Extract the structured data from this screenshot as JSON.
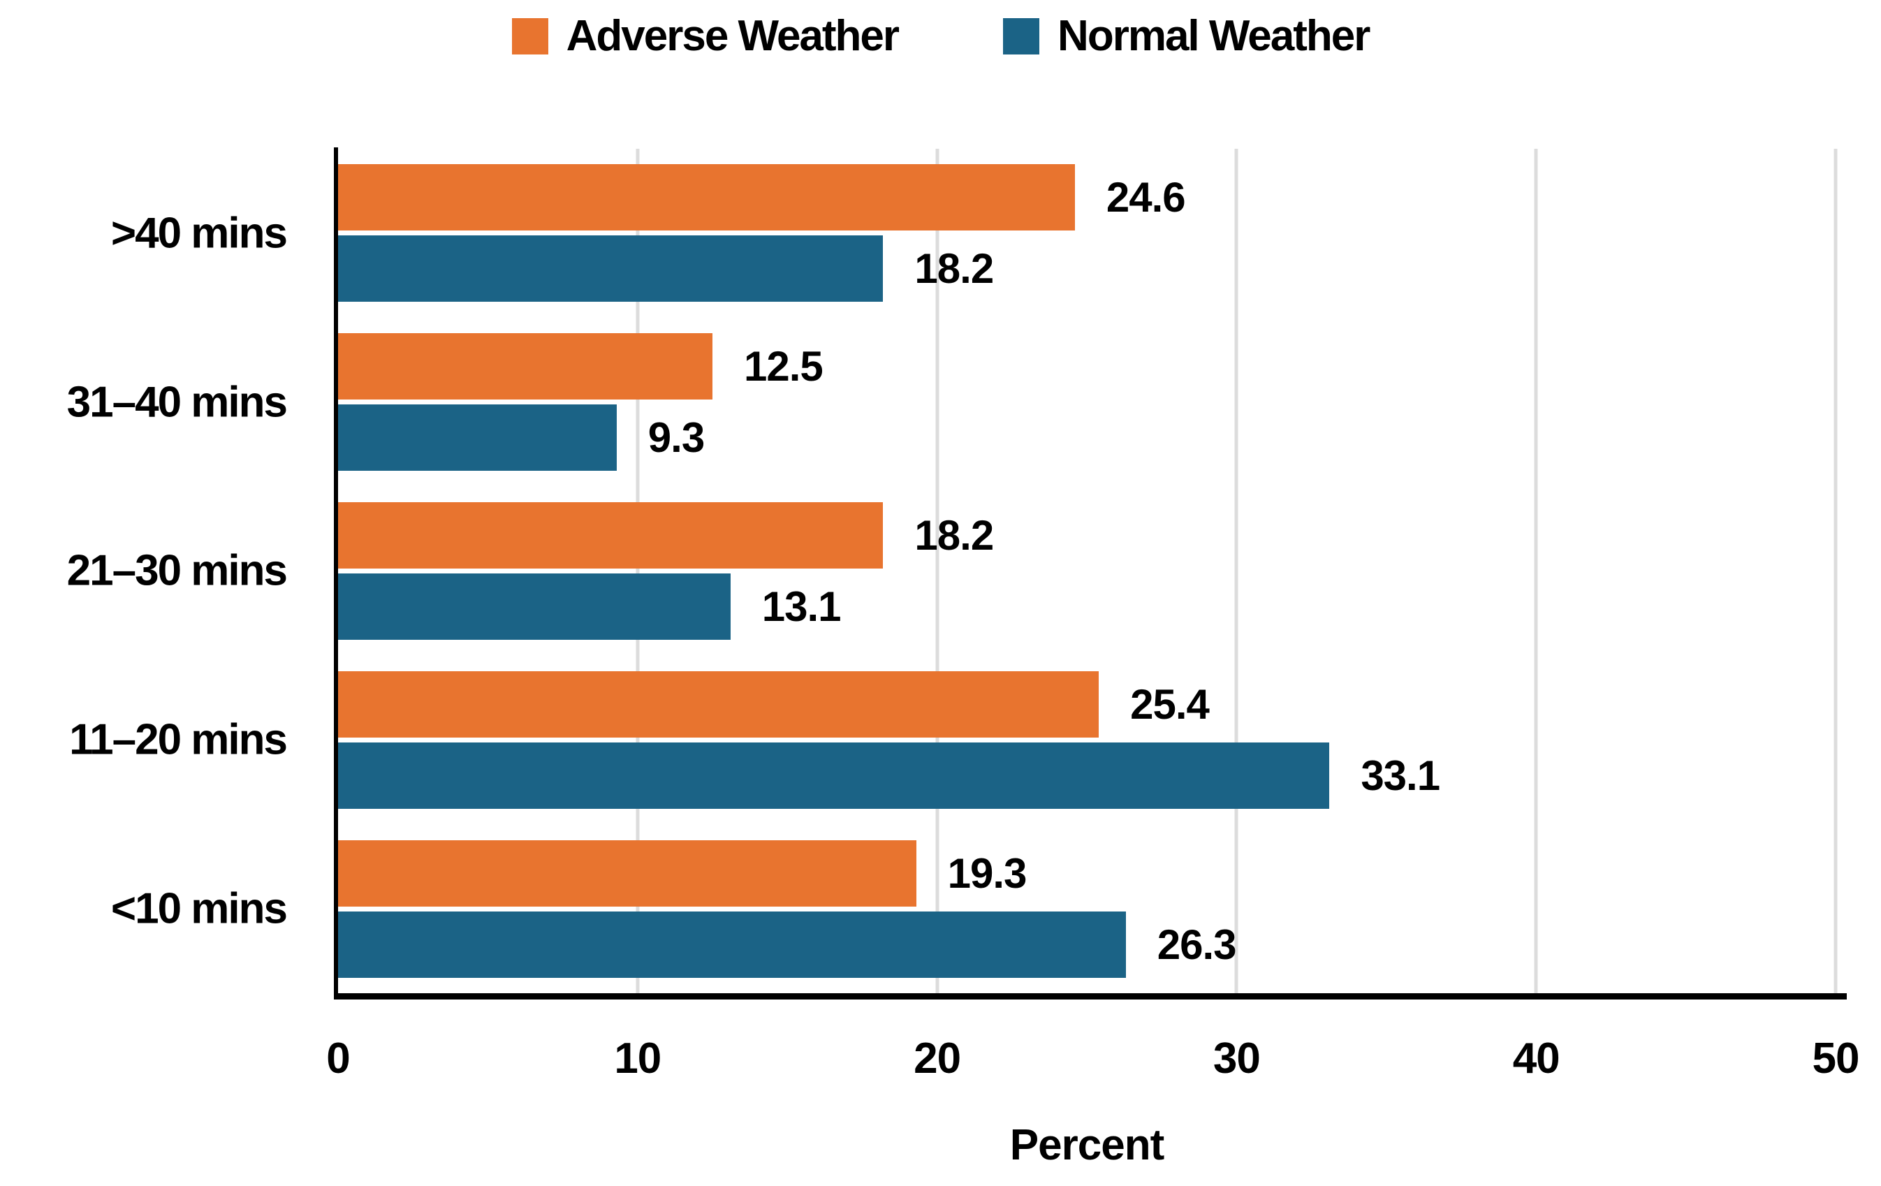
{
  "legend": {
    "items": [
      {
        "label": "Adverse Weather",
        "color": "#E8742F"
      },
      {
        "label": "Normal Weather",
        "color": "#1B6386"
      }
    ],
    "position": "top-center"
  },
  "chart_data": {
    "type": "bar",
    "orientation": "horizontal",
    "title": "",
    "xlabel": "Percent",
    "ylabel": "",
    "xlim": [
      0,
      50
    ],
    "xticks": [
      0,
      10,
      20,
      30,
      40,
      50
    ],
    "grid": "vertical",
    "legend_position": "top",
    "value_labels": true,
    "value_label_decimals": 1,
    "categories": [
      ">40 mins",
      "31–40 mins",
      "21–30 mins",
      "11–20 mins",
      "<10 mins"
    ],
    "series": [
      {
        "name": "Adverse Weather",
        "color": "#E8742F",
        "values": [
          24.6,
          12.5,
          18.2,
          25.4,
          19.3
        ]
      },
      {
        "name": "Normal Weather",
        "color": "#1B6386",
        "values": [
          18.2,
          9.3,
          13.1,
          33.1,
          26.3
        ]
      }
    ]
  },
  "colors": {
    "adverse_weather": "#E8742F",
    "normal_weather": "#1B6386",
    "gridline": "#DCDCDC",
    "axis_line": "#000000",
    "text": "#000000",
    "background": "#FFFFFF"
  }
}
